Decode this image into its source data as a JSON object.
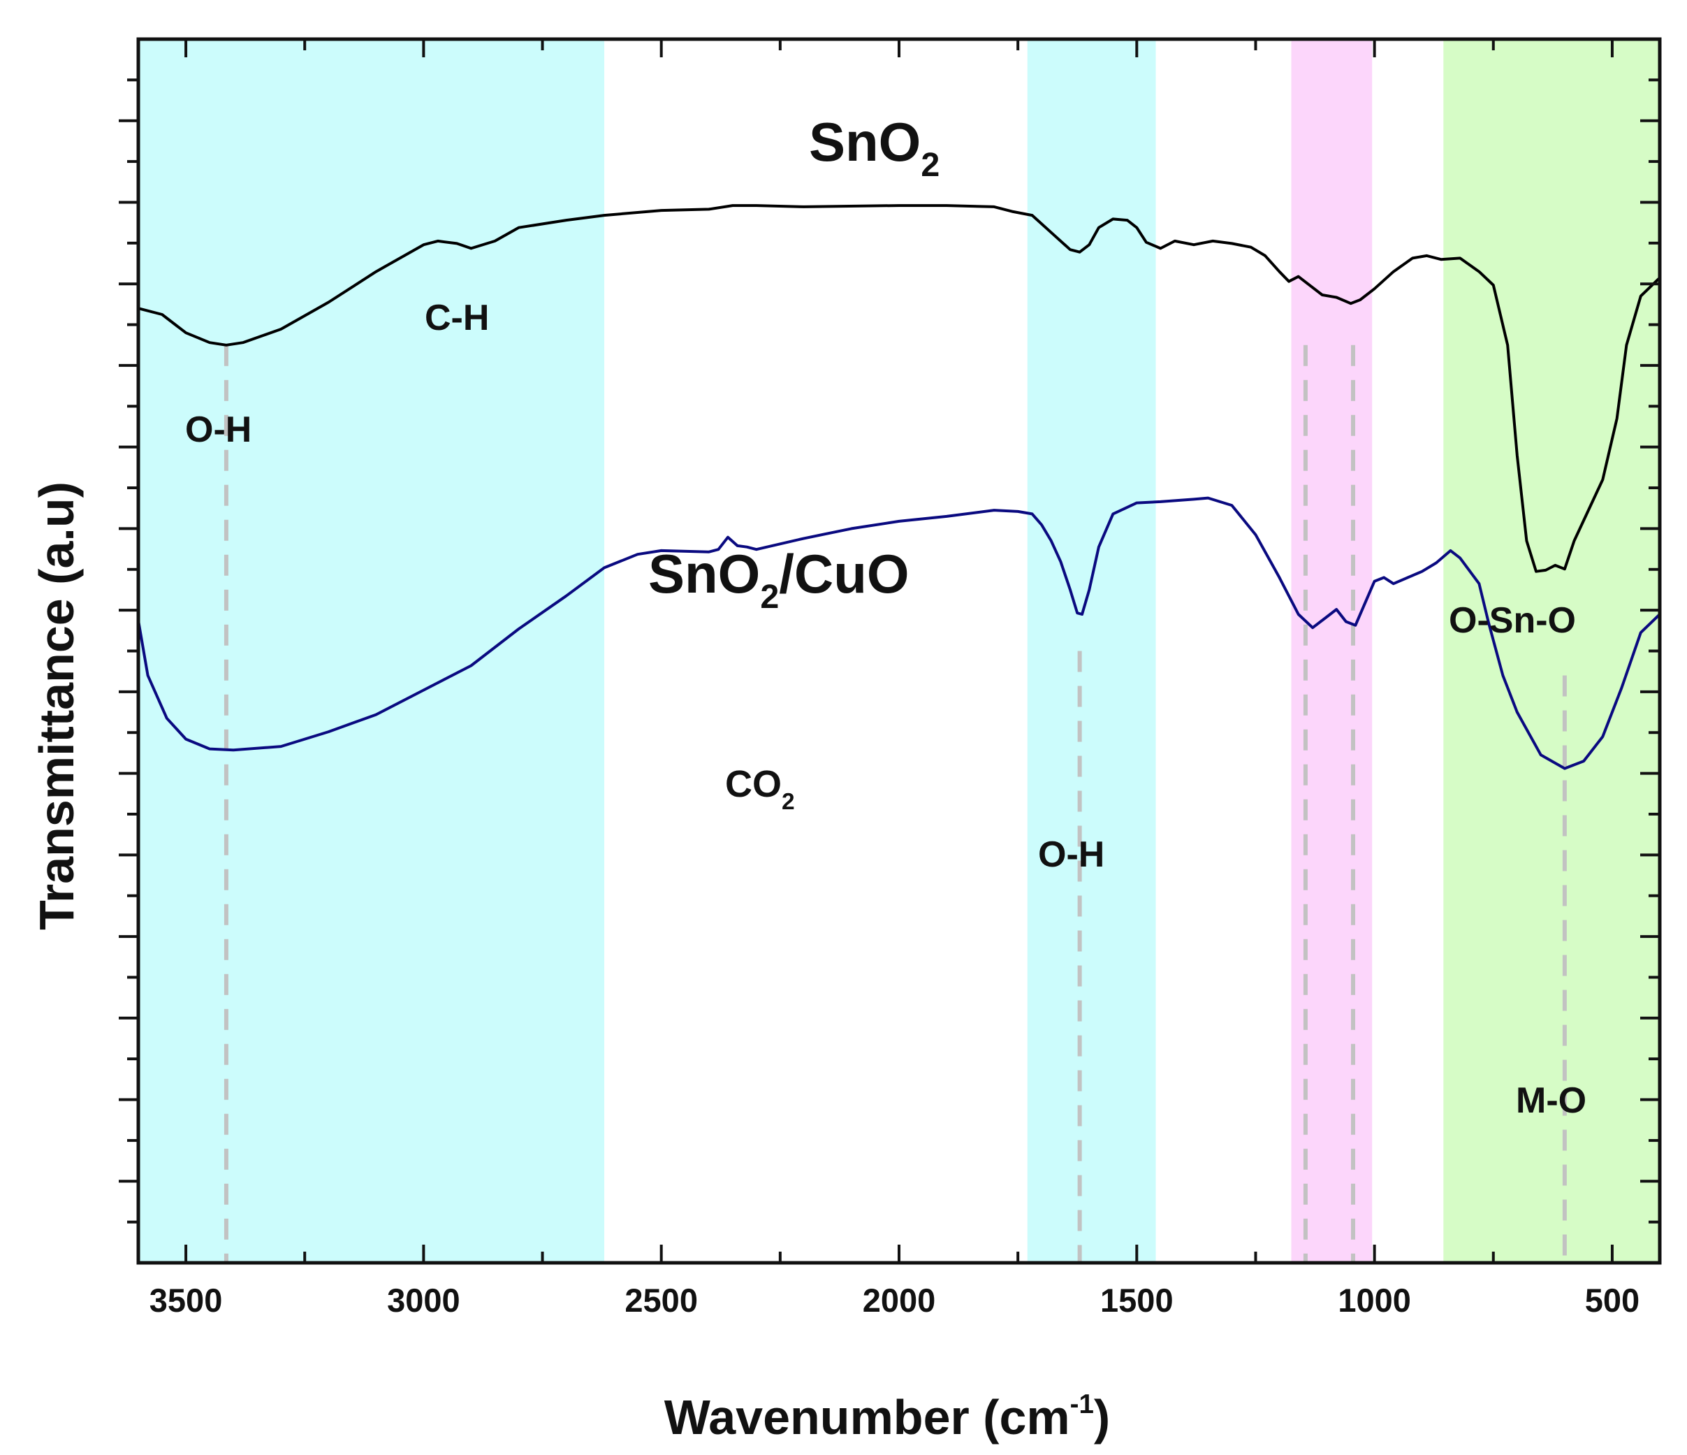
{
  "chart_data": {
    "type": "line",
    "title": "",
    "xlabel": {
      "main": "Wavenumber (cm",
      "sup": "-1",
      "end": ")"
    },
    "ylabel": "Transmittance (a.u)",
    "xlim": [
      3600,
      400
    ],
    "ylim": [
      0,
      100
    ],
    "x_ticks": [
      3500,
      3000,
      2500,
      2000,
      1500,
      1000,
      500
    ],
    "y_tick_labels": "none",
    "colors": {
      "band_cyan": "#ccfcfc",
      "band_pink": "#fcd6fb",
      "band_green": "#d6fcc6",
      "series_sno2": "#000000",
      "series_sno2_cuo": "#0a0a80",
      "guide_lines": "#c2c2c2"
    },
    "bands": [
      {
        "name": "band-oh-ch",
        "from": 3600,
        "to": 2620,
        "color": "band_cyan"
      },
      {
        "name": "band-oh-bend",
        "from": 1730,
        "to": 1460,
        "color": "band_cyan"
      },
      {
        "name": "band-mid",
        "from": 1175,
        "to": 1005,
        "color": "band_pink"
      },
      {
        "name": "band-metal-oxide",
        "from": 855,
        "to": 400,
        "color": "band_green"
      }
    ],
    "guide_lines": [
      {
        "x": 3415,
        "y_top": 75
      },
      {
        "x": 1620,
        "y_top": 50
      },
      {
        "x": 1145,
        "y_top": 75
      },
      {
        "x": 1045,
        "y_top": 75
      },
      {
        "x": 600,
        "y_top": 48
      }
    ],
    "series": [
      {
        "name": "SnO2",
        "color": "series_sno2",
        "points": [
          [
            3600,
            78.0
          ],
          [
            3550,
            77.5
          ],
          [
            3500,
            76.0
          ],
          [
            3450,
            75.2
          ],
          [
            3415,
            75.0
          ],
          [
            3380,
            75.2
          ],
          [
            3300,
            76.3
          ],
          [
            3200,
            78.5
          ],
          [
            3100,
            81.0
          ],
          [
            3000,
            83.2
          ],
          [
            2970,
            83.5
          ],
          [
            2930,
            83.3
          ],
          [
            2900,
            82.9
          ],
          [
            2850,
            83.5
          ],
          [
            2800,
            84.6
          ],
          [
            2700,
            85.2
          ],
          [
            2620,
            85.6
          ],
          [
            2500,
            86.0
          ],
          [
            2400,
            86.1
          ],
          [
            2350,
            86.4
          ],
          [
            2300,
            86.4
          ],
          [
            2200,
            86.3
          ],
          [
            2000,
            86.4
          ],
          [
            1900,
            86.4
          ],
          [
            1800,
            86.3
          ],
          [
            1760,
            85.9
          ],
          [
            1720,
            85.6
          ],
          [
            1680,
            84.2
          ],
          [
            1640,
            82.8
          ],
          [
            1620,
            82.6
          ],
          [
            1600,
            83.2
          ],
          [
            1580,
            84.6
          ],
          [
            1550,
            85.3
          ],
          [
            1520,
            85.2
          ],
          [
            1500,
            84.6
          ],
          [
            1480,
            83.4
          ],
          [
            1450,
            82.9
          ],
          [
            1420,
            83.5
          ],
          [
            1380,
            83.2
          ],
          [
            1340,
            83.5
          ],
          [
            1300,
            83.3
          ],
          [
            1260,
            83.0
          ],
          [
            1230,
            82.3
          ],
          [
            1200,
            81.0
          ],
          [
            1180,
            80.2
          ],
          [
            1160,
            80.6
          ],
          [
            1140,
            80.0
          ],
          [
            1110,
            79.1
          ],
          [
            1080,
            78.9
          ],
          [
            1050,
            78.4
          ],
          [
            1030,
            78.7
          ],
          [
            1000,
            79.6
          ],
          [
            960,
            81.0
          ],
          [
            920,
            82.1
          ],
          [
            890,
            82.3
          ],
          [
            860,
            82.0
          ],
          [
            820,
            82.1
          ],
          [
            780,
            81.0
          ],
          [
            750,
            79.9
          ],
          [
            720,
            75.0
          ],
          [
            700,
            66.0
          ],
          [
            680,
            59.0
          ],
          [
            660,
            56.5
          ],
          [
            640,
            56.6
          ],
          [
            620,
            57.0
          ],
          [
            600,
            56.7
          ],
          [
            580,
            59.0
          ],
          [
            550,
            61.5
          ],
          [
            520,
            64.0
          ],
          [
            490,
            69.0
          ],
          [
            470,
            75.0
          ],
          [
            440,
            79.0
          ],
          [
            400,
            80.5
          ]
        ]
      },
      {
        "name": "SnO2/CuO",
        "color": "series_sno2_cuo",
        "points": [
          [
            3600,
            52.5
          ],
          [
            3580,
            48.0
          ],
          [
            3540,
            44.5
          ],
          [
            3500,
            42.8
          ],
          [
            3450,
            42.0
          ],
          [
            3400,
            41.9
          ],
          [
            3300,
            42.2
          ],
          [
            3200,
            43.4
          ],
          [
            3100,
            44.8
          ],
          [
            3000,
            46.8
          ],
          [
            2900,
            48.8
          ],
          [
            2800,
            51.8
          ],
          [
            2700,
            54.5
          ],
          [
            2620,
            56.8
          ],
          [
            2550,
            57.9
          ],
          [
            2500,
            58.2
          ],
          [
            2400,
            58.1
          ],
          [
            2380,
            58.3
          ],
          [
            2360,
            59.3
          ],
          [
            2340,
            58.6
          ],
          [
            2320,
            58.5
          ],
          [
            2300,
            58.3
          ],
          [
            2200,
            59.2
          ],
          [
            2100,
            60.0
          ],
          [
            2000,
            60.6
          ],
          [
            1900,
            61.0
          ],
          [
            1800,
            61.5
          ],
          [
            1750,
            61.4
          ],
          [
            1720,
            61.2
          ],
          [
            1700,
            60.3
          ],
          [
            1680,
            59.0
          ],
          [
            1660,
            57.3
          ],
          [
            1640,
            55.0
          ],
          [
            1625,
            53.1
          ],
          [
            1615,
            53.0
          ],
          [
            1600,
            55.0
          ],
          [
            1580,
            58.5
          ],
          [
            1550,
            61.2
          ],
          [
            1500,
            62.1
          ],
          [
            1450,
            62.2
          ],
          [
            1380,
            62.4
          ],
          [
            1350,
            62.5
          ],
          [
            1300,
            61.9
          ],
          [
            1250,
            59.5
          ],
          [
            1200,
            56.0
          ],
          [
            1160,
            53.0
          ],
          [
            1130,
            51.9
          ],
          [
            1100,
            52.8
          ],
          [
            1080,
            53.4
          ],
          [
            1060,
            52.4
          ],
          [
            1040,
            52.1
          ],
          [
            1020,
            53.9
          ],
          [
            1000,
            55.7
          ],
          [
            980,
            56.0
          ],
          [
            960,
            55.5
          ],
          [
            900,
            56.5
          ],
          [
            870,
            57.2
          ],
          [
            840,
            58.2
          ],
          [
            820,
            57.6
          ],
          [
            780,
            55.5
          ],
          [
            760,
            52.3
          ],
          [
            730,
            48.0
          ],
          [
            700,
            45.0
          ],
          [
            650,
            41.5
          ],
          [
            600,
            40.4
          ],
          [
            560,
            41.0
          ],
          [
            520,
            43.0
          ],
          [
            480,
            47.0
          ],
          [
            440,
            51.5
          ],
          [
            400,
            53.0
          ]
        ]
      }
    ],
    "annotations": {
      "sno2_label": {
        "main": "SnO",
        "sub": "2"
      },
      "sno2_cuo_label": {
        "main": "SnO",
        "sub": "2",
        "end": "/CuO"
      },
      "ch_label": "C-H",
      "oh_label_top": "O-H",
      "co2_label": {
        "main": "CO",
        "sub": "2"
      },
      "oh_label_mid": "O-H",
      "osno_label": "O-Sn-O",
      "mo_label": "M-O"
    }
  }
}
